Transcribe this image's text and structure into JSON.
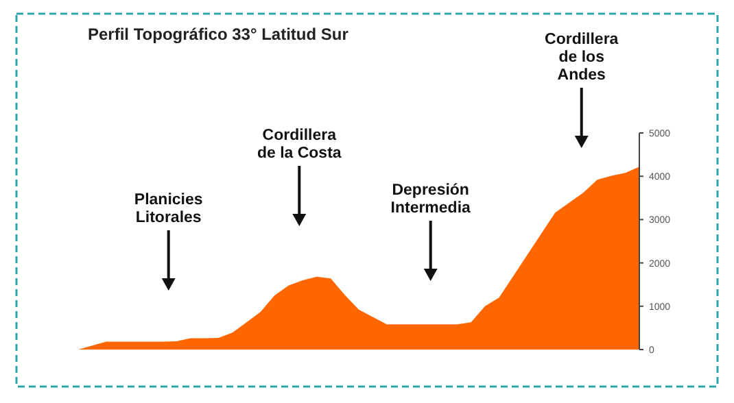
{
  "chart_data": {
    "type": "area",
    "title": "Perfil Topográfico 33° Latitud Sur",
    "categories": [
      null,
      null,
      null,
      null,
      null,
      null,
      null,
      null,
      null,
      null,
      null,
      null,
      null,
      null,
      null,
      null,
      null,
      null,
      null,
      null,
      null,
      null,
      null,
      null,
      null,
      null,
      null,
      null,
      null,
      null,
      null,
      null,
      null,
      null,
      null,
      null,
      null,
      null,
      null,
      null,
      null
    ],
    "series": [
      {
        "color": "#ff6600",
        "values": [
          0,
          90,
          180,
          180,
          180,
          180,
          180,
          190,
          260,
          260,
          270,
          390,
          630,
          870,
          1250,
          1480,
          1600,
          1680,
          1640,
          1260,
          920,
          750,
          580,
          580,
          580,
          580,
          580,
          580,
          630,
          1000,
          1200,
          1690,
          2180,
          2670,
          3160,
          3390,
          3620,
          3920,
          4010,
          4080,
          4220
        ]
      }
    ],
    "ylim": [
      0,
      5000
    ],
    "yticks": [
      0,
      1000,
      2000,
      3000,
      4000,
      5000
    ],
    "grid": false,
    "annotations": [
      "Planicies\nLitorales",
      "Cordillera\nde la Costa",
      "Depresión\nIntermedia",
      "Cordillera\nde los\nAndes"
    ]
  }
}
